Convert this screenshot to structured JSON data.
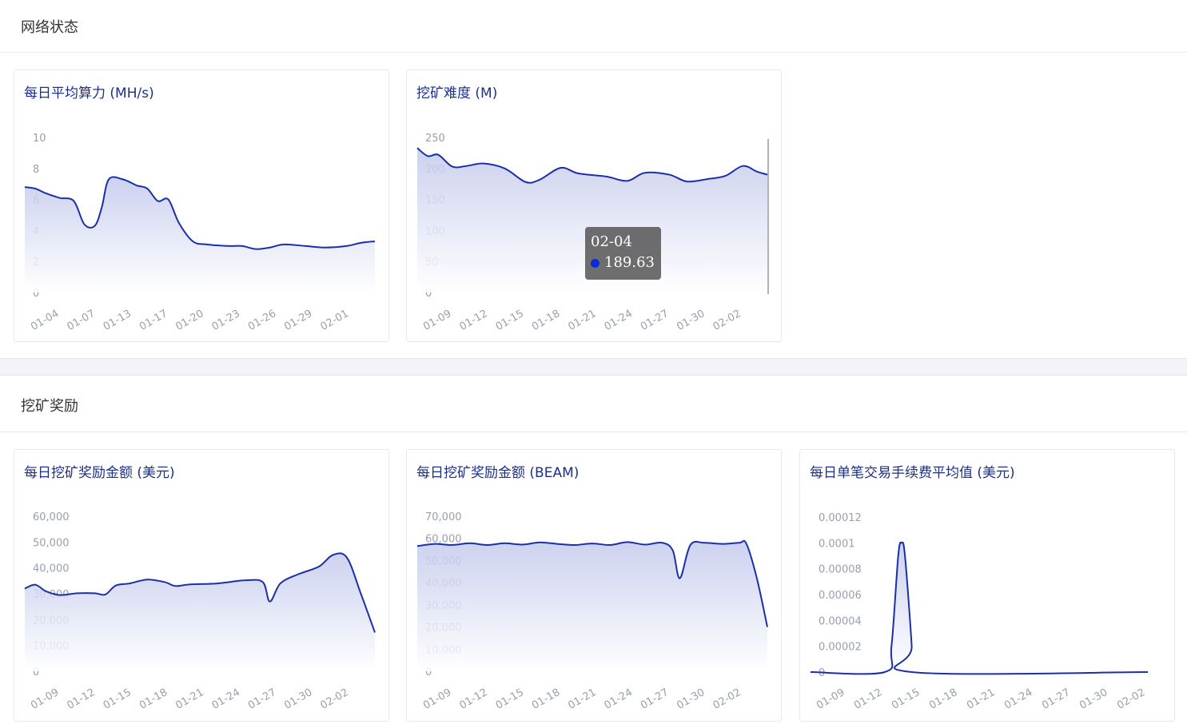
{
  "sections": {
    "network": {
      "title": "网络状态"
    },
    "mining": {
      "title": "挖矿奖励"
    }
  },
  "colors": {
    "line": "#1a2fa8",
    "fill_top": "#c3c9ec",
    "fill_bottom": "#ffffff",
    "title": "#1b2f8c",
    "tick": "#98a0ad"
  },
  "tooltip": {
    "date": "02-04",
    "value": "189.63",
    "marker_color": "#0b2bd6"
  },
  "chart_data": [
    {
      "id": "hashrate",
      "type": "area",
      "title": "每日平均算力 (MH/s)",
      "ylim": [
        0,
        10
      ],
      "y_ticks": [
        "0",
        "2",
        "4",
        "6",
        "8",
        "10"
      ],
      "y_tick_values": [
        0,
        2,
        4,
        6,
        8,
        10
      ],
      "x_ticks": [
        "01-04",
        "01-07",
        "01-13",
        "01-17",
        "01-20",
        "01-23",
        "01-26",
        "01-29",
        "02-01"
      ],
      "points": [
        [
          0,
          6.8
        ],
        [
          0.03,
          6.7
        ],
        [
          0.06,
          6.4
        ],
        [
          0.1,
          6.1
        ],
        [
          0.14,
          5.9
        ],
        [
          0.17,
          4.4
        ],
        [
          0.2,
          4.3
        ],
        [
          0.22,
          5.5
        ],
        [
          0.24,
          7.3
        ],
        [
          0.28,
          7.3
        ],
        [
          0.32,
          6.9
        ],
        [
          0.35,
          6.7
        ],
        [
          0.38,
          5.9
        ],
        [
          0.41,
          6.0
        ],
        [
          0.44,
          4.5
        ],
        [
          0.48,
          3.3
        ],
        [
          0.52,
          3.1
        ],
        [
          0.58,
          3.0
        ],
        [
          0.62,
          3.0
        ],
        [
          0.66,
          2.8
        ],
        [
          0.7,
          2.9
        ],
        [
          0.74,
          3.1
        ],
        [
          0.8,
          3.0
        ],
        [
          0.86,
          2.9
        ],
        [
          0.92,
          3.0
        ],
        [
          0.96,
          3.2
        ],
        [
          1.0,
          3.3
        ]
      ]
    },
    {
      "id": "difficulty",
      "type": "area",
      "title": "挖矿难度 (M)",
      "ylim": [
        0,
        250
      ],
      "y_ticks": [
        "0",
        "50",
        "100",
        "150",
        "200",
        "250"
      ],
      "y_tick_values": [
        0,
        50,
        100,
        150,
        200,
        250
      ],
      "x_ticks": [
        "01-09",
        "01-12",
        "01-15",
        "01-18",
        "01-21",
        "01-24",
        "01-27",
        "01-30",
        "02-02"
      ],
      "points": [
        [
          0,
          233
        ],
        [
          0.03,
          220
        ],
        [
          0.06,
          222
        ],
        [
          0.1,
          203
        ],
        [
          0.14,
          204
        ],
        [
          0.19,
          208
        ],
        [
          0.25,
          200
        ],
        [
          0.31,
          178
        ],
        [
          0.35,
          182
        ],
        [
          0.41,
          201
        ],
        [
          0.46,
          192
        ],
        [
          0.54,
          187
        ],
        [
          0.6,
          180
        ],
        [
          0.65,
          193
        ],
        [
          0.72,
          190
        ],
        [
          0.77,
          179
        ],
        [
          0.83,
          183
        ],
        [
          0.88,
          188
        ],
        [
          0.93,
          204
        ],
        [
          0.97,
          195
        ],
        [
          1.0,
          190
        ]
      ]
    },
    {
      "id": "reward_usd",
      "type": "area",
      "title": "每日挖矿奖励金额 (美元)",
      "ylim": [
        0,
        60000
      ],
      "y_ticks": [
        "0",
        "10,000",
        "20,000",
        "30,000",
        "40,000",
        "50,000",
        "60,000"
      ],
      "y_tick_values": [
        0,
        10000,
        20000,
        30000,
        40000,
        50000,
        60000
      ],
      "x_ticks": [
        "01-09",
        "01-12",
        "01-15",
        "01-18",
        "01-21",
        "01-24",
        "01-27",
        "01-30",
        "02-02"
      ],
      "points": [
        [
          0,
          32000
        ],
        [
          0.03,
          33500
        ],
        [
          0.06,
          31000
        ],
        [
          0.1,
          29500
        ],
        [
          0.15,
          30200
        ],
        [
          0.2,
          30200
        ],
        [
          0.23,
          29700
        ],
        [
          0.26,
          33200
        ],
        [
          0.3,
          34000
        ],
        [
          0.35,
          35500
        ],
        [
          0.4,
          34500
        ],
        [
          0.43,
          33000
        ],
        [
          0.47,
          33600
        ],
        [
          0.55,
          34000
        ],
        [
          0.63,
          35200
        ],
        [
          0.68,
          34500
        ],
        [
          0.7,
          27000
        ],
        [
          0.73,
          34000
        ],
        [
          0.78,
          37500
        ],
        [
          0.84,
          40500
        ],
        [
          0.88,
          45000
        ],
        [
          0.92,
          44000
        ],
        [
          0.96,
          30000
        ],
        [
          1.0,
          15000
        ]
      ]
    },
    {
      "id": "reward_beam",
      "type": "area",
      "title": "每日挖矿奖励金额 (BEAM)",
      "ylim": [
        0,
        70000
      ],
      "y_ticks": [
        "0",
        "10,000",
        "20,000",
        "30,000",
        "40,000",
        "50,000",
        "60,000",
        "70,000"
      ],
      "y_tick_values": [
        0,
        10000,
        20000,
        30000,
        40000,
        50000,
        60000,
        70000
      ],
      "x_ticks": [
        "01-09",
        "01-12",
        "01-15",
        "01-18",
        "01-21",
        "01-24",
        "01-27",
        "01-30",
        "02-02"
      ],
      "points": [
        [
          0,
          56500
        ],
        [
          0.05,
          57500
        ],
        [
          0.1,
          57000
        ],
        [
          0.15,
          57800
        ],
        [
          0.2,
          57000
        ],
        [
          0.25,
          57800
        ],
        [
          0.3,
          57200
        ],
        [
          0.35,
          58200
        ],
        [
          0.4,
          57500
        ],
        [
          0.45,
          57000
        ],
        [
          0.5,
          57700
        ],
        [
          0.55,
          57000
        ],
        [
          0.6,
          58300
        ],
        [
          0.65,
          57200
        ],
        [
          0.7,
          58000
        ],
        [
          0.73,
          54500
        ],
        [
          0.75,
          42000
        ],
        [
          0.78,
          57000
        ],
        [
          0.82,
          58000
        ],
        [
          0.87,
          57500
        ],
        [
          0.92,
          58000
        ],
        [
          0.94,
          57600
        ],
        [
          0.97,
          42000
        ],
        [
          1.0,
          20000
        ]
      ]
    },
    {
      "id": "fee_usd",
      "type": "area",
      "title": "每日单笔交易手续费平均值 (美元)",
      "ylim": [
        0,
        0.00012
      ],
      "y_ticks": [
        "0",
        "0.00002",
        "0.00004",
        "0.00006",
        "0.00008",
        "0.0001",
        "0.00012"
      ],
      "y_tick_values": [
        0,
        2e-05,
        4e-05,
        6e-05,
        8e-05,
        0.0001,
        0.00012
      ],
      "x_ticks": [
        "01-09",
        "01-12",
        "01-15",
        "01-18",
        "01-21",
        "01-24",
        "01-27",
        "01-30",
        "02-02"
      ],
      "points": [
        [
          0,
          0
        ],
        [
          0.22,
          0
        ],
        [
          0.24,
          2e-05
        ],
        [
          0.26,
          9e-05
        ],
        [
          0.27,
          0.0001
        ],
        [
          0.28,
          9e-05
        ],
        [
          0.3,
          2e-05
        ],
        [
          0.3,
          0
        ],
        [
          1.0,
          0
        ]
      ]
    }
  ]
}
